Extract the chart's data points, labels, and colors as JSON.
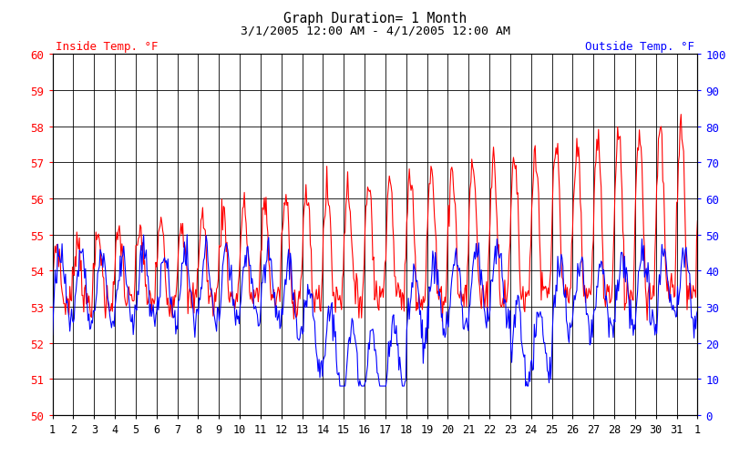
{
  "title_line1": "Graph Duration= 1 Month",
  "title_line2": "3/1/2005 12:00 AM - 4/1/2005 12:00 AM",
  "left_label": "Inside Temp. °F",
  "right_label": "Outside Temp. °F",
  "left_color": "#ff0000",
  "right_color": "#0000ff",
  "left_ylim": [
    50,
    60
  ],
  "right_ylim": [
    0,
    100
  ],
  "left_yticks": [
    50,
    51,
    52,
    53,
    54,
    55,
    56,
    57,
    58,
    59,
    60
  ],
  "right_yticks": [
    0,
    10,
    20,
    30,
    40,
    50,
    60,
    70,
    80,
    90,
    100
  ],
  "bg_color": "#ffffff",
  "grid_color": "#000000",
  "title_color": "#000000",
  "n_days": 31,
  "points_per_day": 24
}
